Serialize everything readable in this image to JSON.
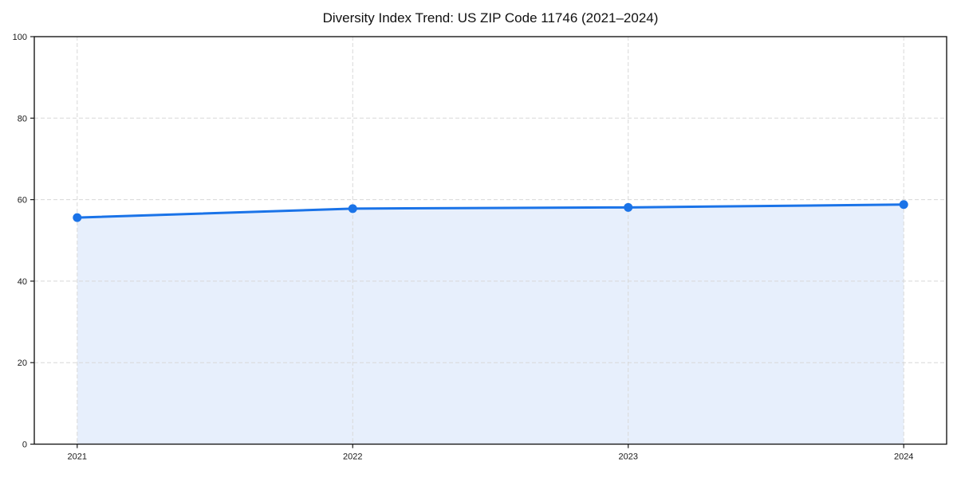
{
  "chart_data": {
    "type": "area",
    "title": "Diversity Index Trend: US ZIP Code 11746 (2021–2024)",
    "x": [
      "2021",
      "2022",
      "2023",
      "2024"
    ],
    "series": [
      {
        "name": "Diversity Index",
        "values": [
          55.6,
          57.8,
          58.1,
          58.8
        ]
      }
    ],
    "xlabel": "",
    "ylabel": "",
    "ylim": [
      0,
      100
    ],
    "yticks": [
      0,
      20,
      40,
      60,
      80,
      100
    ],
    "grid": true,
    "legend": false,
    "colors": {
      "line": "#1a73e8",
      "marker": "#1a73e8",
      "area_fill": "#e7effc",
      "grid": "#d8d8d8",
      "axis": "#1a1a1a",
      "text": "#1a1a1a",
      "background": "#ffffff"
    }
  }
}
